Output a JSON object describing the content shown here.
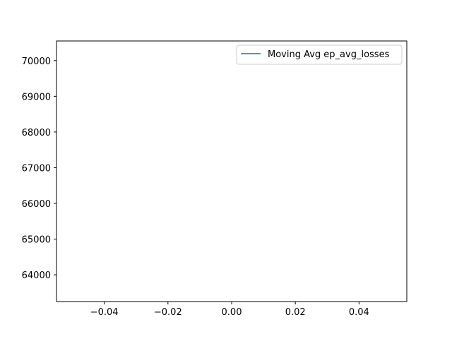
{
  "chart_data": {
    "type": "line",
    "title": "",
    "xlabel": "",
    "ylabel": "",
    "xlim": [
      -0.055,
      0.055
    ],
    "ylim": [
      63250,
      70550
    ],
    "x_ticks": [
      -0.04,
      -0.02,
      0.0,
      0.02,
      0.04
    ],
    "x_tick_labels": [
      "−0.04",
      "−0.02",
      "0.00",
      "0.02",
      "0.04"
    ],
    "y_ticks": [
      64000,
      65000,
      66000,
      67000,
      68000,
      69000,
      70000
    ],
    "y_tick_labels": [
      "64000",
      "65000",
      "66000",
      "67000",
      "68000",
      "69000",
      "70000"
    ],
    "grid": false,
    "legend_position": "top-right",
    "series": [
      {
        "name": "Moving Avg ep_avg_losses",
        "color": "#1f77b4",
        "x": [],
        "y": []
      }
    ]
  }
}
